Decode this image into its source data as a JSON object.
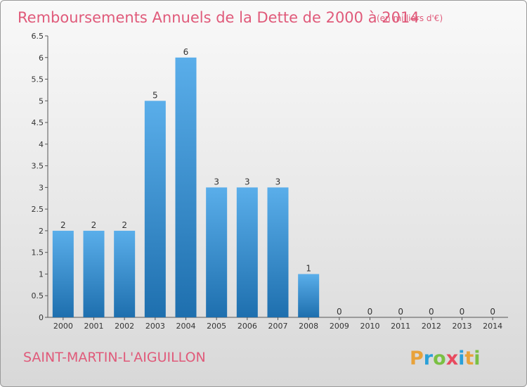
{
  "header": {
    "title": "Remboursements Annuels de la Dette de 2000 à 2014",
    "subtitle": "(en milliers d'€)"
  },
  "footer": {
    "commune": "SAINT-MARTIN-L'AIGUILLON",
    "logo_text": "Proxiti"
  },
  "colors": {
    "title": "#e05a7a",
    "bar_light": "#5aaeea",
    "bar_dark": "#1e6fae",
    "logo_letters": [
      "#e8a23a",
      "#2aa0d8",
      "#7ac043",
      "#e84a5f",
      "#2aa0d8",
      "#e8a23a",
      "#7ac043"
    ]
  },
  "chart_data": {
    "type": "bar",
    "title": "Remboursements Annuels de la Dette de 2000 à 2014",
    "subtitle": "(en milliers d'€)",
    "categories": [
      "2000",
      "2001",
      "2002",
      "2003",
      "2004",
      "2005",
      "2006",
      "2007",
      "2008",
      "2009",
      "2010",
      "2011",
      "2012",
      "2013",
      "2014"
    ],
    "values": [
      2,
      2,
      2,
      5,
      6,
      3,
      3,
      3,
      1,
      0,
      0,
      0,
      0,
      0,
      0
    ],
    "data_labels": [
      "2",
      "2",
      "2",
      "5",
      "6",
      "3",
      "3",
      "3",
      "1",
      "0",
      "0",
      "0",
      "0",
      "0",
      "0"
    ],
    "ylim": [
      0,
      6.5
    ],
    "yticks": [
      "0",
      "0.5",
      "1",
      "1.5",
      "2",
      "2.5",
      "3",
      "3.5",
      "4",
      "4.5",
      "5",
      "5.5",
      "6",
      "6.5"
    ],
    "ytick_values": [
      0,
      0.5,
      1,
      1.5,
      2,
      2.5,
      3,
      3.5,
      4,
      4.5,
      5,
      5.5,
      6,
      6.5
    ],
    "xlabel": "",
    "ylabel": "",
    "grid": false,
    "legend": "none"
  }
}
